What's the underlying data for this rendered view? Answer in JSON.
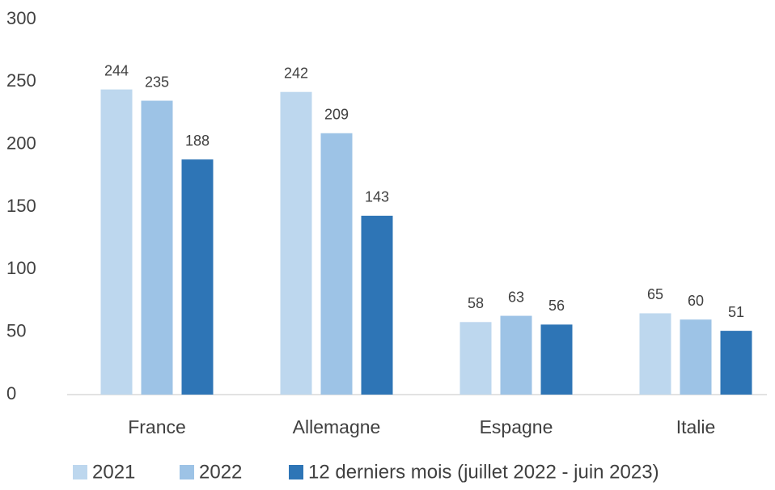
{
  "chart_data": {
    "type": "bar",
    "categories": [
      "France",
      "Allemagne",
      "Espagne",
      "Italie"
    ],
    "series": [
      {
        "name": "2021",
        "color": "#bdd7ee",
        "values": [
          244,
          242,
          58,
          65
        ]
      },
      {
        "name": "2022",
        "color": "#9dc3e6",
        "values": [
          235,
          209,
          63,
          60
        ]
      },
      {
        "name": "12 derniers mois (juillet 2022 - juin 2023)",
        "color": "#2e75b6",
        "values": [
          188,
          143,
          56,
          51
        ]
      }
    ],
    "ylim": [
      0,
      300
    ],
    "yticks": [
      0,
      50,
      100,
      150,
      200,
      250,
      300
    ],
    "grid": false,
    "data_labels": true,
    "legend": "bottom"
  }
}
